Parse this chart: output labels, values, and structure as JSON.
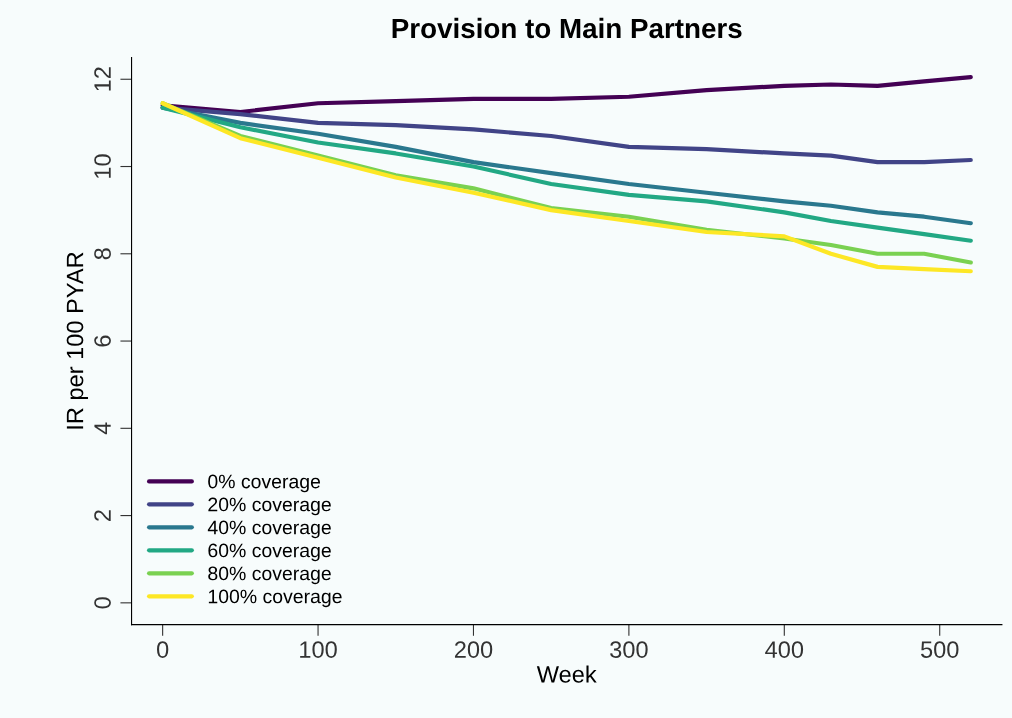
{
  "chart_data": {
    "type": "line",
    "title": "Provision to Main Partners",
    "xlabel": "Week",
    "ylabel": "IR per 100 PYAR",
    "x": [
      0,
      50,
      100,
      150,
      200,
      250,
      300,
      350,
      400,
      430,
      460,
      490,
      520
    ],
    "series": [
      {
        "name": "0% coverage",
        "color": "#440154",
        "values": [
          11.4,
          11.25,
          11.45,
          11.5,
          11.55,
          11.55,
          11.6,
          11.75,
          11.85,
          11.88,
          11.85,
          11.95,
          12.05
        ]
      },
      {
        "name": "20% coverage",
        "color": "#414487",
        "values": [
          11.35,
          11.2,
          11.0,
          10.95,
          10.85,
          10.7,
          10.45,
          10.4,
          10.3,
          10.25,
          10.1,
          10.1,
          10.15
        ]
      },
      {
        "name": "40% coverage",
        "color": "#2a788e",
        "values": [
          11.35,
          11.0,
          10.75,
          10.45,
          10.1,
          9.85,
          9.6,
          9.4,
          9.2,
          9.1,
          8.95,
          8.85,
          8.7
        ]
      },
      {
        "name": "60% coverage",
        "color": "#22a884",
        "values": [
          11.35,
          10.9,
          10.55,
          10.3,
          10.0,
          9.6,
          9.35,
          9.2,
          8.95,
          8.75,
          8.6,
          8.45,
          8.3
        ]
      },
      {
        "name": "80% coverage",
        "color": "#7ad151",
        "values": [
          11.45,
          10.7,
          10.25,
          9.8,
          9.5,
          9.05,
          8.85,
          8.55,
          8.35,
          8.2,
          8.0,
          8.0,
          7.8
        ]
      },
      {
        "name": "100% coverage",
        "color": "#fde725",
        "values": [
          11.45,
          10.65,
          10.2,
          9.75,
          9.4,
          9.0,
          8.75,
          8.5,
          8.4,
          8.0,
          7.7,
          7.65,
          7.6
        ]
      }
    ],
    "xlim": [
      -20,
      540
    ],
    "ylim": [
      -0.5,
      12.5
    ],
    "xticks": [
      0,
      100,
      200,
      300,
      400,
      500
    ],
    "yticks": [
      0,
      2,
      4,
      6,
      8,
      10,
      12
    ],
    "grid": false,
    "legend": "bottom left",
    "marker": "none",
    "line_style": "solid"
  }
}
